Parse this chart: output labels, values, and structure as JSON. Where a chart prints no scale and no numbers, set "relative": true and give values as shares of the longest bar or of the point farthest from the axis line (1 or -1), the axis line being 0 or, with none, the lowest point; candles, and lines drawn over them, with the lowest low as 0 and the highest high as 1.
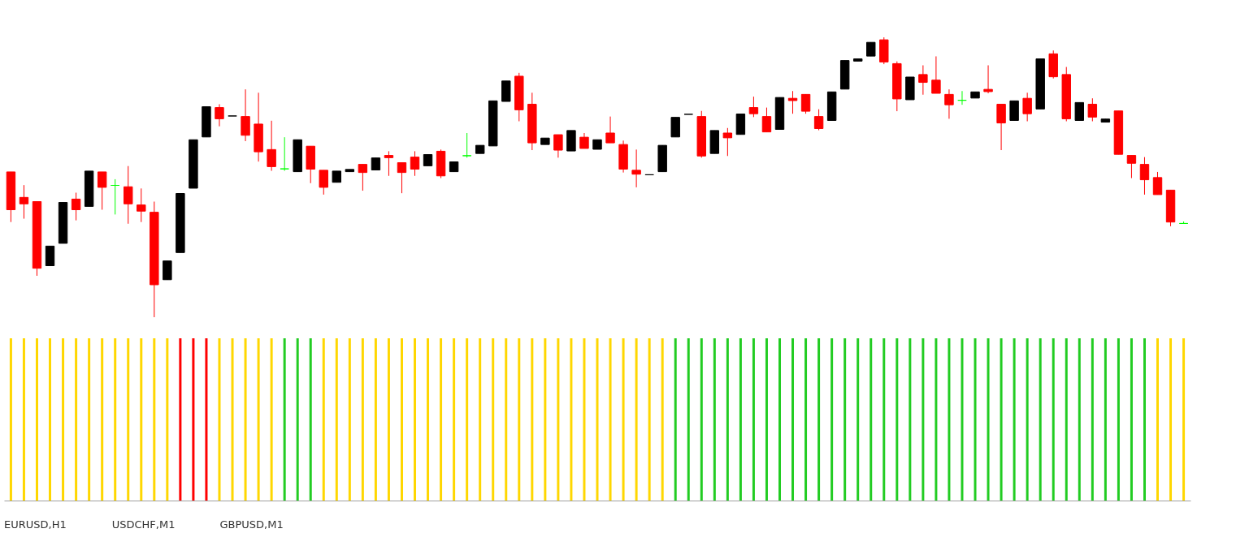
{
  "chart_data": [
    {
      "type": "candlestick",
      "relative": true,
      "categories": [
        null,
        null,
        null,
        null,
        null,
        null,
        null,
        null,
        null,
        null,
        null,
        null,
        null,
        null,
        null,
        null,
        null,
        null,
        null,
        null,
        null,
        null,
        null,
        null,
        null,
        null,
        null,
        null,
        null,
        null,
        null,
        null,
        null,
        null,
        null,
        null,
        null,
        null,
        null,
        null,
        null,
        null,
        null,
        null,
        null,
        null,
        null,
        null,
        null,
        null,
        null,
        null,
        null,
        null,
        null,
        null,
        null,
        null,
        null,
        null,
        null,
        null,
        null,
        null,
        null,
        null,
        null,
        null,
        null,
        null,
        null,
        null,
        null,
        null,
        null,
        null,
        null,
        null,
        null,
        null,
        null,
        null,
        null,
        null,
        null,
        null,
        null,
        null,
        null,
        null,
        null
      ],
      "ohlc": [
        [
          0.519,
          0.519,
          0.34,
          0.384
        ],
        [
          0.428,
          0.472,
          0.352,
          0.405
        ],
        [
          0.413,
          0.413,
          0.148,
          0.175
        ],
        [
          0.184,
          0.254,
          0.184,
          0.254
        ],
        [
          0.264,
          0.41,
          0.264,
          0.41
        ],
        [
          0.422,
          0.445,
          0.346,
          0.384
        ],
        [
          0.396,
          0.522,
          0.396,
          0.522
        ],
        [
          0.519,
          0.519,
          0.384,
          0.464
        ],
        [
          0.471,
          0.493,
          0.367,
          0.471
        ],
        [
          0.466,
          0.54,
          0.334,
          0.405
        ],
        [
          0.401,
          0.46,
          0.34,
          0.379
        ],
        [
          0.375,
          0.413,
          0,
          0.116
        ],
        [
          0.134,
          0.201,
          0.134,
          0.201
        ],
        [
          0.231,
          0.442,
          0.231,
          0.442
        ],
        [
          0.461,
          0.634,
          0.461,
          0.634
        ],
        [
          0.644,
          0.752,
          0.644,
          0.752
        ],
        [
          0.749,
          0.761,
          0.682,
          0.709
        ],
        [
          0.719,
          0.719,
          0.719,
          0.719
        ],
        [
          0.717,
          0.814,
          0.629,
          0.65
        ],
        [
          0.69,
          0.802,
          0.556,
          0.591
        ],
        [
          0.599,
          0.702,
          0.523,
          0.538
        ],
        [
          0.53,
          0.643,
          0.523,
          0.53
        ],
        [
          0.52,
          0.634,
          0.52,
          0.634
        ],
        [
          0.611,
          0.611,
          0.479,
          0.529
        ],
        [
          0.525,
          0.525,
          0.438,
          0.464
        ],
        [
          0.482,
          0.522,
          0.482,
          0.522
        ],
        [
          0.52,
          0.528,
          0.52,
          0.528
        ],
        [
          0.546,
          0.546,
          0.452,
          0.517
        ],
        [
          0.526,
          0.569,
          0.526,
          0.569
        ],
        [
          0.578,
          0.593,
          0.505,
          0.57
        ],
        [
          0.552,
          0.552,
          0.443,
          0.517
        ],
        [
          0.572,
          0.593,
          0.505,
          0.529
        ],
        [
          0.541,
          0.581,
          0.541,
          0.581
        ],
        [
          0.593,
          0.599,
          0.497,
          0.505
        ],
        [
          0.52,
          0.555,
          0.52,
          0.555
        ],
        [
          0.577,
          0.658,
          0.57,
          0.577
        ],
        [
          0.585,
          0.614,
          0.585,
          0.614
        ],
        [
          0.612,
          0.773,
          0.612,
          0.773
        ],
        [
          0.771,
          0.844,
          0.771,
          0.844
        ],
        [
          0.861,
          0.873,
          0.7,
          0.741
        ],
        [
          0.761,
          0.802,
          0.597,
          0.623
        ],
        [
          0.617,
          0.64,
          0.617,
          0.64
        ],
        [
          0.652,
          0.652,
          0.57,
          0.597
        ],
        [
          0.594,
          0.667,
          0.594,
          0.667
        ],
        [
          0.643,
          0.658,
          0.603,
          0.603
        ],
        [
          0.6,
          0.634,
          0.6,
          0.634
        ],
        [
          0.658,
          0.717,
          0.623,
          0.623
        ],
        [
          0.617,
          0.631,
          0.517,
          0.529
        ],
        [
          0.525,
          0.599,
          0.464,
          0.511
        ],
        [
          0.509,
          0.509,
          0.509,
          0.509
        ],
        [
          0.52,
          0.614,
          0.52,
          0.614
        ],
        [
          0.644,
          0.714,
          0.644,
          0.714
        ],
        [
          0.725,
          0.725,
          0.725,
          0.725
        ],
        [
          0.717,
          0.737,
          0.57,
          0.576
        ],
        [
          0.585,
          0.667,
          0.585,
          0.667
        ],
        [
          0.658,
          0.676,
          0.576,
          0.641
        ],
        [
          0.653,
          0.726,
          0.653,
          0.726
        ],
        [
          0.749,
          0.788,
          0.715,
          0.727
        ],
        [
          0.717,
          0.749,
          0.662,
          0.662
        ],
        [
          0.671,
          0.785,
          0.671,
          0.785
        ],
        [
          0.782,
          0.808,
          0.727,
          0.774
        ],
        [
          0.796,
          0.796,
          0.727,
          0.736
        ],
        [
          0.717,
          0.743,
          0.668,
          0.674
        ],
        [
          0.703,
          0.805,
          0.703,
          0.805
        ],
        [
          0.815,
          0.917,
          0.815,
          0.917
        ],
        [
          0.915,
          0.923,
          0.915,
          0.923
        ],
        [
          0.933,
          0.982,
          0.933,
          0.982
        ],
        [
          0.991,
          1.0,
          0.904,
          0.912
        ],
        [
          0.906,
          0.914,
          0.736,
          0.78
        ],
        [
          0.777,
          0.858,
          0.777,
          0.858
        ],
        [
          0.867,
          0.9,
          0.795,
          0.839
        ],
        [
          0.847,
          0.932,
          0.8,
          0.8
        ],
        [
          0.796,
          0.814,
          0.709,
          0.759
        ],
        [
          0.775,
          0.808,
          0.759,
          0.775
        ],
        [
          0.783,
          0.805,
          0.783,
          0.805
        ],
        [
          0.814,
          0.9,
          0.8,
          0.806
        ],
        [
          0.761,
          0.761,
          0.597,
          0.694
        ],
        [
          0.703,
          0.773,
          0.703,
          0.773
        ],
        [
          0.782,
          0.802,
          0.7,
          0.727
        ],
        [
          0.744,
          0.923,
          0.744,
          0.923
        ],
        [
          0.941,
          0.953,
          0.853,
          0.859
        ],
        [
          0.867,
          0.894,
          0.7,
          0.709
        ],
        [
          0.703,
          0.767,
          0.703,
          0.767
        ],
        [
          0.761,
          0.782,
          0.7,
          0.715
        ],
        [
          0.697,
          0.708,
          0.697,
          0.708
        ],
        [
          0.737,
          0.737,
          0.582,
          0.582
        ],
        [
          0.578,
          0.578,
          0.497,
          0.55
        ],
        [
          0.546,
          0.572,
          0.438,
          0.491
        ],
        [
          0.499,
          0.519,
          0.438,
          0.438
        ],
        [
          0.454,
          0.454,
          0.325,
          0.34
        ],
        [
          0.335,
          0.342,
          0.335,
          0.335
        ]
      ],
      "colors": [
        "#ff0000",
        "#ff0000",
        "#ff0000",
        "#000000",
        "#000000",
        "#ff0000",
        "#000000",
        "#ff0000",
        "#00ff00",
        "#ff0000",
        "#ff0000",
        "#ff0000",
        "#000000",
        "#000000",
        "#000000",
        "#000000",
        "#ff0000",
        "#000000",
        "#ff0000",
        "#ff0000",
        "#ff0000",
        "#00ff00",
        "#000000",
        "#ff0000",
        "#ff0000",
        "#000000",
        "#000000",
        "#ff0000",
        "#000000",
        "#ff0000",
        "#ff0000",
        "#ff0000",
        "#000000",
        "#ff0000",
        "#000000",
        "#00ff00",
        "#000000",
        "#000000",
        "#000000",
        "#ff0000",
        "#ff0000",
        "#000000",
        "#ff0000",
        "#000000",
        "#ff0000",
        "#000000",
        "#ff0000",
        "#ff0000",
        "#ff0000",
        "#000000",
        "#000000",
        "#000000",
        "#000000",
        "#ff0000",
        "#000000",
        "#ff0000",
        "#000000",
        "#ff0000",
        "#ff0000",
        "#000000",
        "#ff0000",
        "#ff0000",
        "#ff0000",
        "#000000",
        "#000000",
        "#000000",
        "#000000",
        "#ff0000",
        "#ff0000",
        "#000000",
        "#ff0000",
        "#ff0000",
        "#ff0000",
        "#00ff00",
        "#000000",
        "#ff0000",
        "#ff0000",
        "#000000",
        "#ff0000",
        "#000000",
        "#ff0000",
        "#ff0000",
        "#000000",
        "#ff0000",
        "#000000",
        "#ff0000",
        "#ff0000",
        "#ff0000",
        "#ff0000",
        "#ff0000",
        "#00ff00"
      ]
    },
    {
      "type": "bar",
      "relative": true,
      "categories": [
        null,
        null,
        null,
        null,
        null,
        null,
        null,
        null,
        null,
        null,
        null,
        null,
        null,
        null,
        null,
        null,
        null,
        null,
        null,
        null,
        null,
        null,
        null,
        null,
        null,
        null,
        null,
        null,
        null,
        null,
        null,
        null,
        null,
        null,
        null,
        null,
        null,
        null,
        null,
        null,
        null,
        null,
        null,
        null,
        null,
        null,
        null,
        null,
        null,
        null,
        null,
        null,
        null,
        null,
        null,
        null,
        null,
        null,
        null,
        null,
        null,
        null,
        null,
        null,
        null,
        null,
        null,
        null,
        null,
        null,
        null,
        null,
        null,
        null,
        null,
        null,
        null,
        null,
        null,
        null,
        null,
        null,
        null,
        null,
        null,
        null,
        null,
        null,
        null,
        null,
        null
      ],
      "values": [
        1,
        1,
        1,
        1,
        1,
        1,
        1,
        1,
        1,
        1,
        1,
        1,
        1,
        1,
        1,
        1,
        1,
        1,
        1,
        1,
        1,
        1,
        1,
        1,
        1,
        1,
        1,
        1,
        1,
        1,
        1,
        1,
        1,
        1,
        1,
        1,
        1,
        1,
        1,
        1,
        1,
        1,
        1,
        1,
        1,
        1,
        1,
        1,
        1,
        1,
        1,
        1,
        1,
        1,
        1,
        1,
        1,
        1,
        1,
        1,
        1,
        1,
        1,
        1,
        1,
        1,
        1,
        1,
        1,
        1,
        1,
        1,
        1,
        1,
        1,
        1,
        1,
        1,
        1,
        1,
        1,
        1,
        1,
        1,
        1,
        1,
        1,
        1,
        1,
        1,
        1
      ],
      "colors": [
        "#ffd700",
        "#ffd700",
        "#ffd700",
        "#ffd700",
        "#ffd700",
        "#ffd700",
        "#ffd700",
        "#ffd700",
        "#ffd700",
        "#ffd700",
        "#ffd700",
        "#ffd700",
        "#ffd700",
        "#ff0000",
        "#ff0000",
        "#ff0000",
        "#ffd700",
        "#ffd700",
        "#ffd700",
        "#ffd700",
        "#ffd700",
        "#22cc22",
        "#22cc22",
        "#22cc22",
        "#ffd700",
        "#ffd700",
        "#ffd700",
        "#ffd700",
        "#ffd700",
        "#ffd700",
        "#ffd700",
        "#ffd700",
        "#ffd700",
        "#ffd700",
        "#ffd700",
        "#ffd700",
        "#ffd700",
        "#ffd700",
        "#ffd700",
        "#ffd700",
        "#ffd700",
        "#ffd700",
        "#ffd700",
        "#ffd700",
        "#ffd700",
        "#ffd700",
        "#ffd700",
        "#ffd700",
        "#ffd700",
        "#ffd700",
        "#ffd700",
        "#22cc22",
        "#22cc22",
        "#22cc22",
        "#22cc22",
        "#22cc22",
        "#22cc22",
        "#22cc22",
        "#22cc22",
        "#22cc22",
        "#22cc22",
        "#22cc22",
        "#22cc22",
        "#22cc22",
        "#22cc22",
        "#22cc22",
        "#22cc22",
        "#22cc22",
        "#22cc22",
        "#22cc22",
        "#22cc22",
        "#22cc22",
        "#22cc22",
        "#22cc22",
        "#22cc22",
        "#22cc22",
        "#22cc22",
        "#22cc22",
        "#22cc22",
        "#22cc22",
        "#22cc22",
        "#22cc22",
        "#22cc22",
        "#22cc22",
        "#22cc22",
        "#22cc22",
        "#22cc22",
        "#22cc22",
        "#ffd700",
        "#ffd700",
        "#ffd700"
      ],
      "annotations": [
        "EURUSD,H1",
        "USDCHF,M1",
        "GBPUSD,M1"
      ]
    }
  ]
}
